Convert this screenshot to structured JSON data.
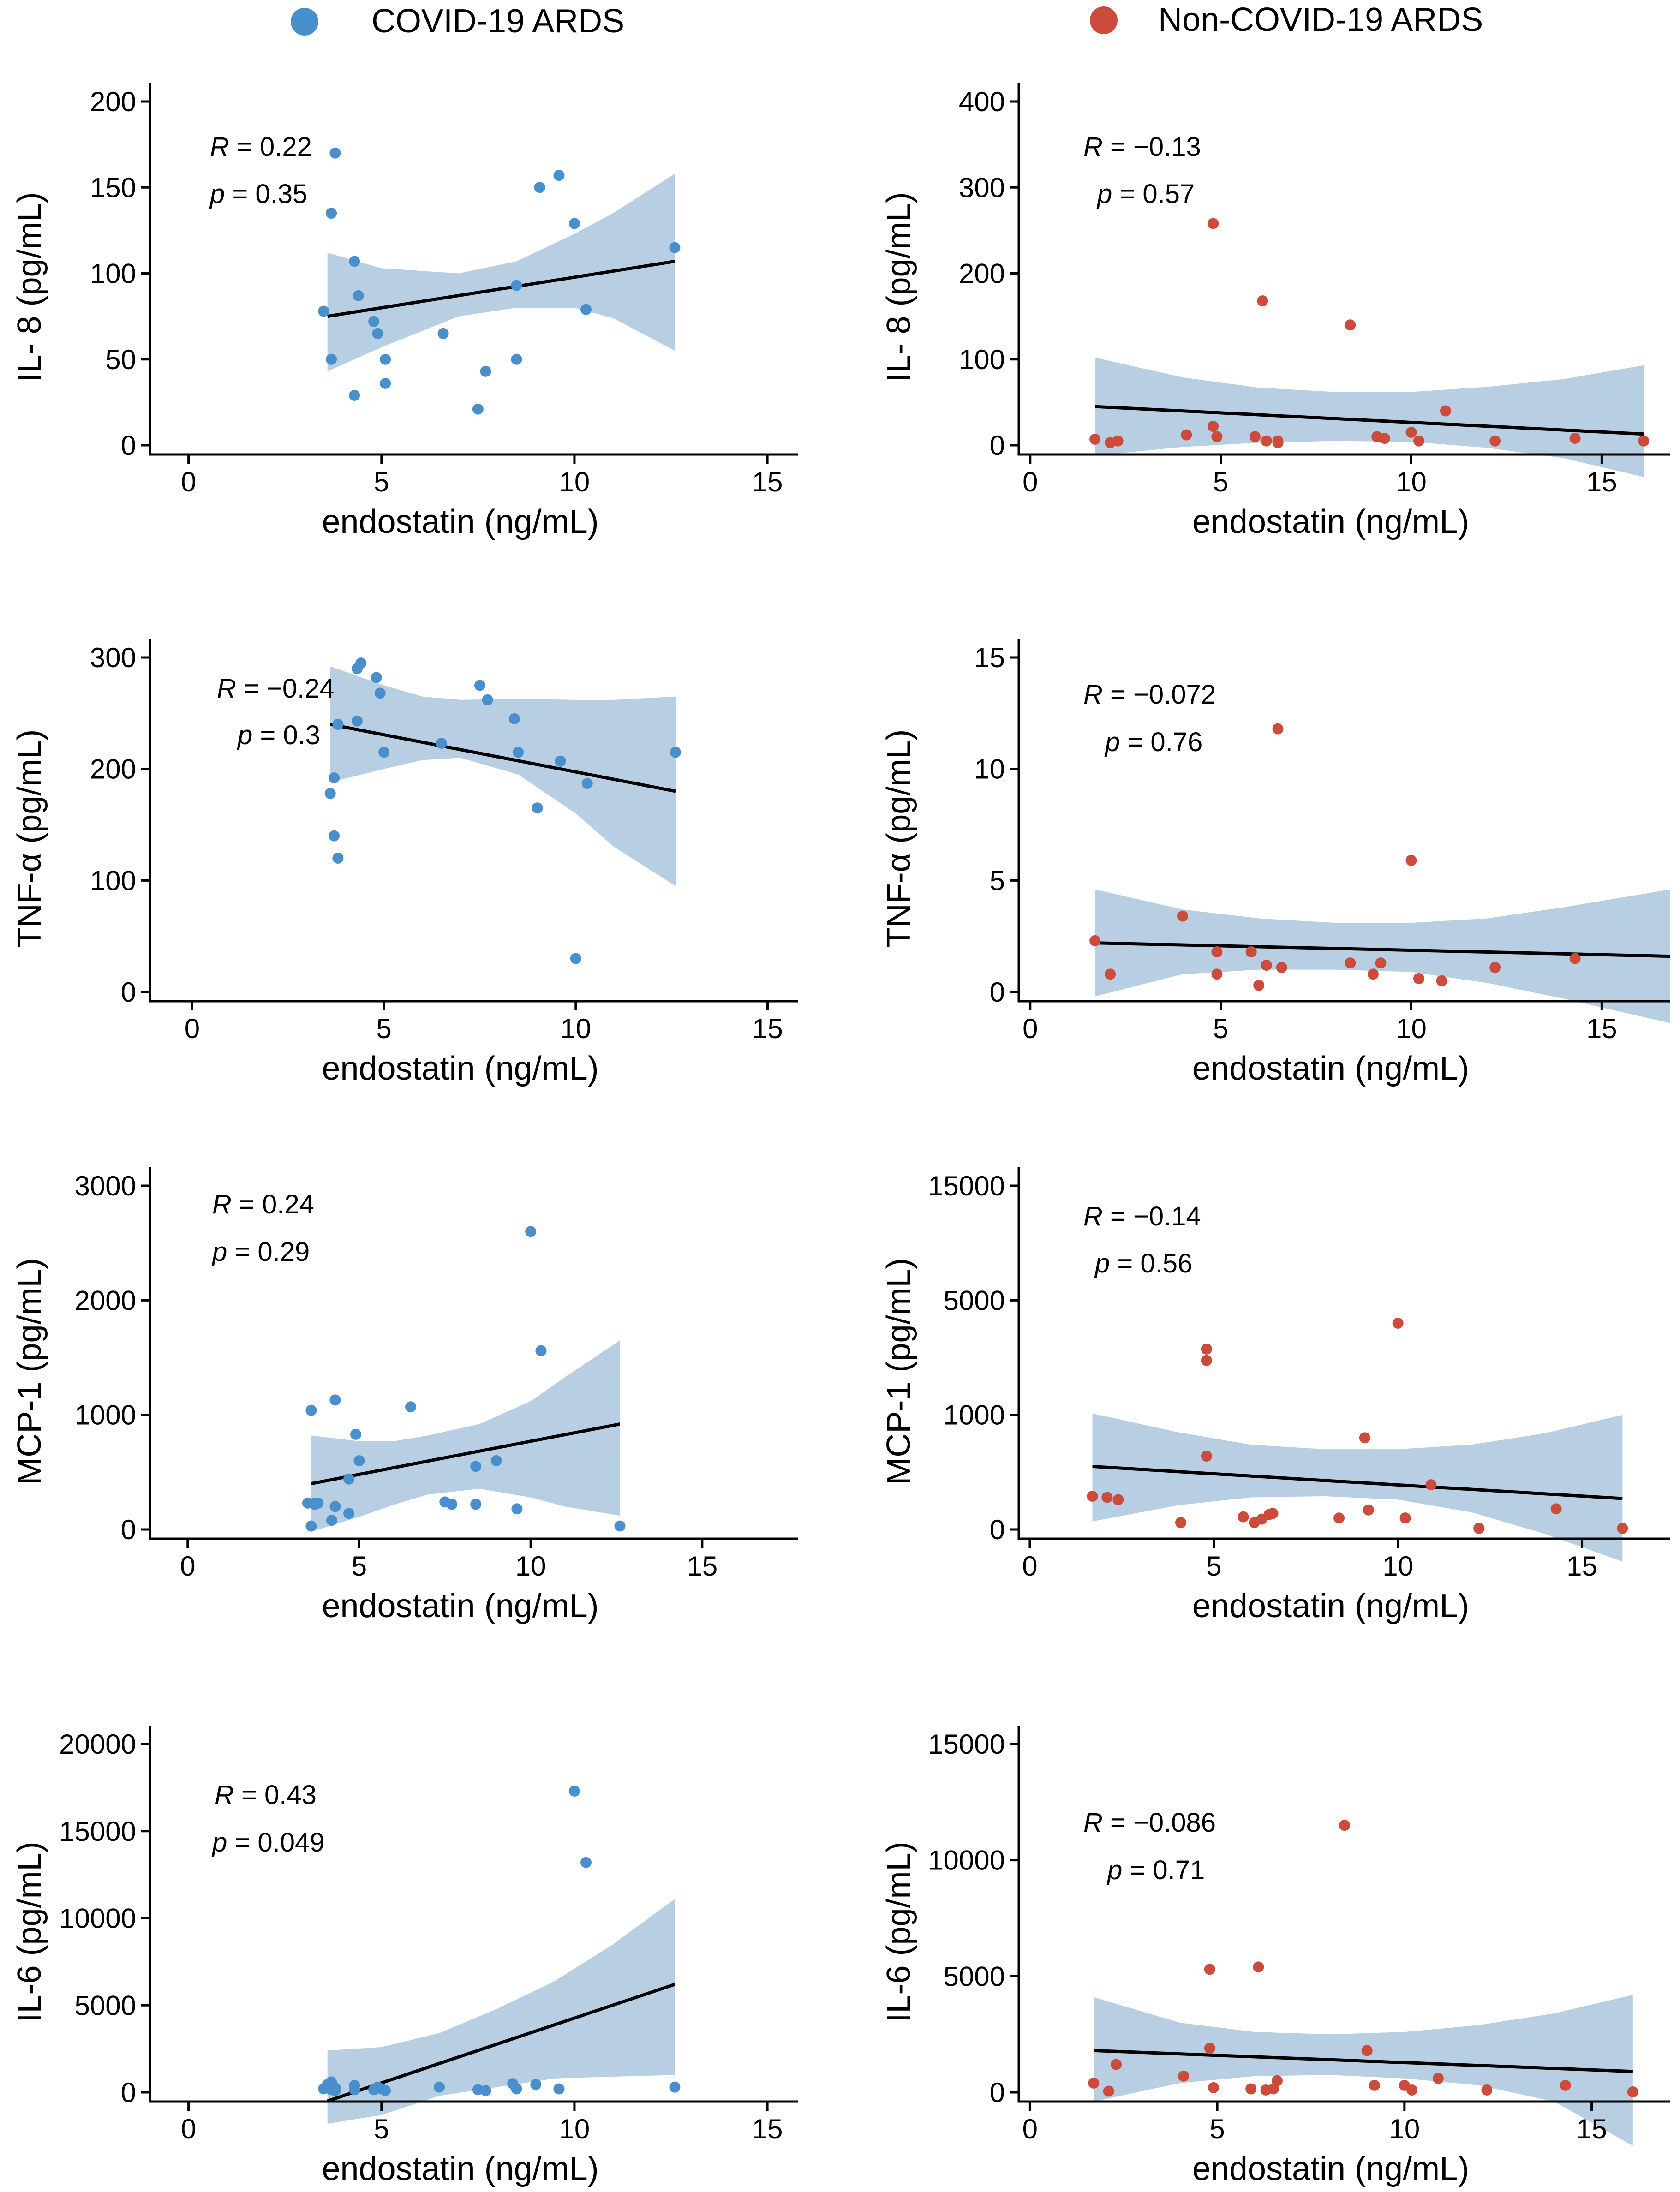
{
  "legend": [
    {
      "label": "COVID-19 ARDS",
      "color": "#4a8fcd"
    },
    {
      "label": "Non-COVID-19 ARDS",
      "color": "#cc4b3a"
    }
  ],
  "colors": {
    "band": "#b8cfe3",
    "fit": "#000000",
    "axis": "#000000"
  },
  "chart_data": [
    {
      "type": "scatter",
      "group": "COVID-19 ARDS",
      "marker_color": "#4a8fcd",
      "xlabel": "endostatin  (ng/mL)",
      "ylabel": "IL- 8 (pg/mL)",
      "xlim": [
        -1,
        15.8
      ],
      "ylim": [
        -10,
        205
      ],
      "xticks": [
        "0",
        "5",
        "10",
        "15"
      ],
      "yticks": [
        "0",
        "50",
        "100",
        "150",
        "200"
      ],
      "stats": {
        "r_label": "R",
        "r_value": " = 0.22",
        "p_label": "p",
        "p_value": " = 0.35"
      },
      "fit_line": {
        "x": [
          3.6,
          12.6
        ],
        "y": [
          75,
          107
        ]
      },
      "ci_band": {
        "x": [
          3.6,
          5,
          7,
          8.5,
          10,
          11,
          12.6
        ],
        "upper": [
          112,
          103,
          100,
          107,
          123,
          135,
          158
        ],
        "lower": [
          43,
          57,
          75,
          80,
          80,
          74,
          55
        ]
      },
      "points": {
        "x": [
          3.5,
          3.7,
          3.8,
          3.7,
          4.3,
          4.4,
          4.3,
          4.8,
          4.9,
          5.1,
          5.1,
          6.6,
          7.5,
          7.7,
          8.5,
          8.5,
          9.1,
          9.6,
          10.0,
          10.3,
          12.6
        ],
        "y": [
          78,
          50,
          170,
          135,
          107,
          87,
          29,
          72,
          65,
          50,
          36,
          65,
          21,
          43,
          93,
          50,
          150,
          157,
          129,
          79,
          115
        ]
      }
    },
    {
      "type": "scatter",
      "group": "Non-COVID-19 ARDS",
      "marker_color": "#cc4b3a",
      "xlabel": "endostatin  (ng/mL)",
      "ylabel": "IL- 8 (pg/mL)",
      "xlim": [
        -0.3,
        16.8
      ],
      "ylim": [
        -20,
        420
      ],
      "xticks": [
        "0",
        "5",
        "10",
        "15"
      ],
      "yticks": [
        "0",
        "100",
        "200",
        "300",
        "400"
      ],
      "stats": {
        "r_label": "R",
        "r_value": " = −0.13",
        "p_label": "p",
        "p_value": " = 0.57"
      },
      "fit_line": {
        "x": [
          1.7,
          16.1
        ],
        "y": [
          45,
          13
        ]
      },
      "ci_band": {
        "x": [
          1.7,
          4,
          6,
          8,
          10,
          12,
          14,
          16.1
        ],
        "upper": [
          102,
          79,
          67,
          62,
          62,
          68,
          77,
          93
        ],
        "lower": [
          -12,
          -2,
          3,
          5,
          4,
          -3,
          -15,
          -37
        ]
      },
      "points": {
        "x": [
          1.7,
          2.1,
          2.3,
          4.1,
          4.8,
          4.8,
          4.9,
          5.9,
          6.1,
          6.2,
          6.5,
          6.5,
          8.4,
          9.1,
          9.3,
          10.0,
          10.2,
          10.9,
          12.2,
          14.3,
          16.1
        ],
        "y": [
          7,
          3,
          5,
          12,
          258,
          22,
          10,
          10,
          168,
          5,
          3,
          5,
          140,
          10,
          8,
          15,
          5,
          40,
          5,
          8,
          5
        ]
      }
    },
    {
      "type": "scatter",
      "group": "COVID-19 ARDS",
      "marker_color": "#4a8fcd",
      "xlabel": "endostatin  (ng/mL)",
      "ylabel": "TNF-α  (pg/mL)",
      "xlim": [
        -1.1,
        15.8
      ],
      "ylim": [
        -10,
        310
      ],
      "xticks": [
        "0",
        "5",
        "10",
        "15"
      ],
      "yticks": [
        "0",
        "100",
        "200",
        "300"
      ],
      "stats": {
        "r_label": "R",
        "r_value": " = −0.24",
        "p_label": "p",
        "p_value": " = 0.3"
      },
      "fit_line": {
        "x": [
          3.6,
          12.6
        ],
        "y": [
          240,
          180
        ]
      },
      "ci_band": {
        "x": [
          3.6,
          5,
          6,
          7,
          8.5,
          10,
          11,
          12.6
        ],
        "upper": [
          292,
          275,
          265,
          262,
          263,
          262,
          262,
          265
        ],
        "lower": [
          188,
          200,
          208,
          210,
          195,
          160,
          130,
          95
        ]
      },
      "points": {
        "x": [
          3.6,
          3.7,
          3.8,
          3.7,
          3.8,
          4.3,
          4.3,
          4.4,
          4.8,
          4.9,
          5.0,
          6.5,
          7.5,
          7.7,
          8.4,
          8.5,
          9.0,
          9.6,
          10.0,
          10.3,
          12.6
        ],
        "y": [
          178,
          140,
          120,
          192,
          240,
          243,
          290,
          295,
          282,
          268,
          215,
          223,
          275,
          262,
          245,
          215,
          165,
          207,
          30,
          187,
          215
        ]
      }
    },
    {
      "type": "scatter",
      "group": "Non-COVID-19 ARDS",
      "marker_color": "#cc4b3a",
      "xlabel": "endostatin  (ng/mL)",
      "ylabel": "TNF-α  (pg/mL)",
      "xlim": [
        -0.3,
        16.8
      ],
      "ylim": [
        -1,
        16
      ],
      "xticks": [
        "0",
        "5",
        "10",
        "15"
      ],
      "yticks": [
        "0",
        "5",
        "10",
        "15"
      ],
      "stats": {
        "r_label": "R",
        "r_value": " = −0.072",
        "p_label": "p",
        "p_value": " = 0.76"
      },
      "fit_line": {
        "x": [
          1.7,
          16.8
        ],
        "y": [
          2.2,
          1.6
        ]
      },
      "ci_band": {
        "x": [
          1.7,
          4,
          6,
          8,
          10,
          12,
          14,
          16.8
        ],
        "upper": [
          4.6,
          3.7,
          3.3,
          3.1,
          3.1,
          3.3,
          3.8,
          4.6
        ],
        "lower": [
          -0.2,
          0.8,
          1.0,
          1.0,
          0.9,
          0.4,
          -0.3,
          -1.4
        ]
      },
      "points": {
        "x": [
          1.7,
          2.1,
          4.0,
          4.9,
          4.9,
          5.8,
          6.0,
          6.2,
          6.5,
          6.6,
          8.4,
          9.0,
          9.2,
          10.0,
          10.2,
          10.8,
          12.2,
          14.3
        ],
        "y": [
          2.3,
          0.8,
          3.4,
          1.8,
          0.8,
          1.8,
          0.3,
          1.2,
          11.8,
          1.1,
          1.3,
          0.8,
          1.3,
          5.9,
          0.6,
          0.5,
          1.1,
          1.5
        ]
      }
    },
    {
      "type": "scatter",
      "group": "COVID-19 ARDS",
      "marker_color": "#4a8fcd",
      "xlabel": "endostatin  (ng/mL)",
      "ylabel": "MCP-1 (pg/mL)",
      "xlim": [
        -1.1,
        17.8
      ],
      "ylim": [
        -150,
        3100
      ],
      "xticks": [
        "0",
        "5",
        "10",
        "15"
      ],
      "yticks": [
        "0",
        "1000",
        "2000",
        "3000"
      ],
      "stats": {
        "r_label": "R",
        "r_value": " = 0.24",
        "p_label": "p",
        "p_value": " = 0.29"
      },
      "fit_line": {
        "x": [
          3.6,
          12.6
        ],
        "y": [
          400,
          920
        ]
      },
      "ci_band": {
        "x": [
          3.6,
          5,
          6,
          7,
          8.5,
          10,
          11,
          12.6
        ],
        "upper": [
          820,
          770,
          770,
          820,
          920,
          1120,
          1330,
          1650
        ],
        "lower": [
          -20,
          110,
          215,
          305,
          355,
          280,
          200,
          120
        ]
      },
      "points": {
        "x": [
          3.5,
          3.6,
          3.6,
          3.7,
          3.7,
          3.8,
          4.2,
          4.3,
          4.3,
          4.7,
          4.7,
          4.9,
          5.0,
          6.5,
          7.5,
          7.7,
          8.4,
          8.4,
          9.0,
          9.6,
          10.0,
          10.3,
          12.6
        ],
        "y": [
          230,
          1040,
          30,
          220,
          230,
          230,
          80,
          1130,
          200,
          440,
          140,
          830,
          600,
          1070,
          240,
          220,
          550,
          220,
          600,
          180,
          2600,
          1560,
          30
        ]
      }
    },
    {
      "type": "scatter",
      "group": "Non-COVID-19 ARDS",
      "marker_color": "#cc4b3a",
      "xlabel": "endostatin  (ng/mL)",
      "ylabel": "MCP-1 (pg/mL)",
      "xlim": [
        -0.3,
        17.4
      ],
      "ylim": [
        -150,
        15000
      ],
      "xticks": [
        "0",
        "5",
        "10",
        "15"
      ],
      "yticks": [
        "0",
        "1000",
        "5000",
        "15000"
      ],
      "stats": {
        "r_label": "R",
        "r_value": " = −0.14",
        "p_label": "p",
        "p_value": " = 0.56"
      },
      "fit_line": {
        "x": [
          1.7,
          16.1
        ],
        "y": [
          550,
          270
        ]
      },
      "ci_band": {
        "x": [
          1.7,
          4,
          6,
          8,
          10,
          12,
          14,
          16.1
        ],
        "upper": [
          1050,
          850,
          740,
          700,
          700,
          740,
          840,
          1000
        ],
        "lower": [
          70,
          210,
          280,
          290,
          260,
          150,
          -40,
          -280
        ]
      },
      "points": {
        "x": [
          1.7,
          2.1,
          2.4,
          4.1,
          4.8,
          4.8,
          4.8,
          5.8,
          6.1,
          6.3,
          6.5,
          6.6,
          8.4,
          9.1,
          9.2,
          10.0,
          10.2,
          10.9,
          12.2,
          14.3,
          16.1
        ],
        "y": [
          290,
          280,
          260,
          60,
          3300,
          2900,
          640,
          110,
          60,
          90,
          130,
          140,
          100,
          800,
          170,
          4200,
          100,
          390,
          10,
          180,
          10
        ]
      }
    },
    {
      "type": "scatter",
      "group": "COVID-19 ARDS",
      "marker_color": "#4a8fcd",
      "xlabel": "endostatin  (ng/mL)",
      "ylabel": "IL-6 (pg/mL)",
      "xlim": [
        -1,
        15.8
      ],
      "ylim": [
        -700,
        20500
      ],
      "xticks": [
        "0",
        "5",
        "10",
        "15"
      ],
      "yticks": [
        "0",
        "5000",
        "10000",
        "15000",
        "20000"
      ],
      "stats": {
        "r_label": "R",
        "r_value": " = 0.43",
        "p_label": "p",
        "p_value": " = 0.049"
      },
      "fit_line": {
        "x": [
          3.6,
          12.6
        ],
        "y": [
          -500,
          6200
        ]
      },
      "ci_band": {
        "x": [
          3.6,
          5,
          6.5,
          8,
          9.5,
          11,
          12.6
        ],
        "upper": [
          2400,
          2600,
          3400,
          4800,
          6400,
          8500,
          11100
        ],
        "lower": [
          -1800,
          -1300,
          -200,
          300,
          800,
          900,
          1000
        ]
      },
      "points": {
        "x": [
          3.5,
          3.6,
          3.6,
          3.7,
          3.7,
          3.8,
          3.8,
          4.3,
          4.3,
          4.8,
          4.9,
          5.0,
          5.1,
          6.5,
          7.5,
          7.7,
          8.4,
          8.5,
          9.0,
          9.6,
          10.0,
          10.3,
          12.6
        ],
        "y": [
          200,
          300,
          450,
          150,
          600,
          100,
          250,
          400,
          150,
          150,
          300,
          200,
          100,
          300,
          150,
          100,
          500,
          200,
          450,
          200,
          17300,
          13200,
          300
        ]
      }
    },
    {
      "type": "scatter",
      "group": "Non-COVID-19 ARDS",
      "marker_color": "#cc4b3a",
      "xlabel": "endostatin  (ng/mL)",
      "ylabel": "IL-6 (pg/mL)",
      "xlim": [
        -0.3,
        17.1
      ],
      "ylim": [
        -300,
        15400
      ],
      "xticks": [
        "0",
        "5",
        "10",
        "15"
      ],
      "yticks": [
        "0",
        "5000",
        "10000",
        "15000"
      ],
      "stats": {
        "r_label": "R",
        "r_value": " = −0.086",
        "p_label": "p",
        "p_value": " = 0.71"
      },
      "fit_line": {
        "x": [
          1.7,
          16.1
        ],
        "y": [
          1800,
          900
        ]
      },
      "ci_band": {
        "x": [
          1.7,
          4,
          6,
          8,
          10,
          12,
          14,
          16.1
        ],
        "upper": [
          4100,
          3000,
          2600,
          2500,
          2600,
          2900,
          3400,
          4200
        ],
        "lower": [
          -400,
          400,
          700,
          750,
          600,
          300,
          -400,
          -2300
        ]
      },
      "points": {
        "x": [
          1.7,
          2.1,
          2.3,
          4.1,
          4.8,
          4.8,
          4.9,
          5.9,
          6.1,
          6.3,
          6.5,
          6.6,
          8.4,
          9.0,
          9.2,
          10.0,
          10.2,
          10.9,
          12.2,
          14.3,
          16.1
        ],
        "y": [
          400,
          50,
          1200,
          700,
          5300,
          1900,
          200,
          150,
          5400,
          100,
          150,
          500,
          11500,
          1800,
          300,
          300,
          100,
          600,
          100,
          300,
          20
        ]
      }
    }
  ]
}
